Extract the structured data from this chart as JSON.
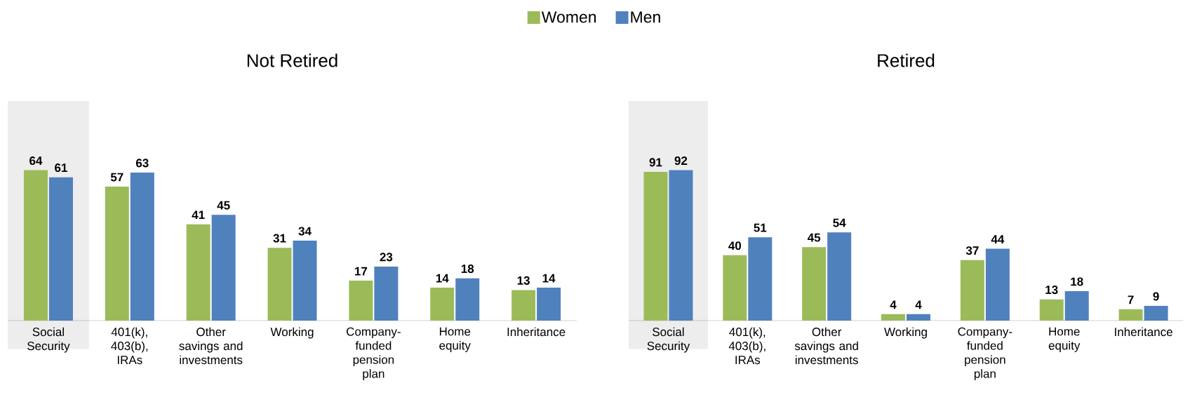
{
  "chart_data": [
    {
      "type": "bar",
      "title": "Not Retired",
      "categories": [
        "Social Security",
        "401(k), 403(b), IRAs",
        "Other savings and investments",
        "Working",
        "Company-funded pension plan",
        "Home equity",
        "Inheritance"
      ],
      "series": [
        {
          "name": "Women",
          "color": "#9bbb59",
          "values": [
            64,
            57,
            41,
            31,
            17,
            14,
            13
          ]
        },
        {
          "name": "Men",
          "color": "#4f81bd",
          "values": [
            61,
            63,
            45,
            34,
            23,
            18,
            14
          ]
        }
      ],
      "data_labels": true,
      "legend": "top",
      "bands": [
        {
          "axis": "x",
          "from": "Social Security",
          "to": "Social Security",
          "color": "#ededed"
        }
      ]
    },
    {
      "type": "bar",
      "title": "Retired",
      "categories": [
        "Social Security",
        "401(k), 403(b), IRAs",
        "Other savings and investments",
        "Working",
        "Company-funded pension plan",
        "Home equity",
        "Inheritance"
      ],
      "series": [
        {
          "color": "#9bbb59",
          "values": [
            91,
            40,
            45,
            4,
            37,
            13,
            7
          ]
        },
        {
          "color": "#4f81bd",
          "values": [
            92,
            51,
            54,
            4,
            44,
            18,
            9
          ]
        }
      ],
      "data_labels": true,
      "bands": [
        {
          "axis": "x",
          "from": "Social Security",
          "to": "Social Security",
          "color": "#ededed"
        }
      ]
    }
  ]
}
